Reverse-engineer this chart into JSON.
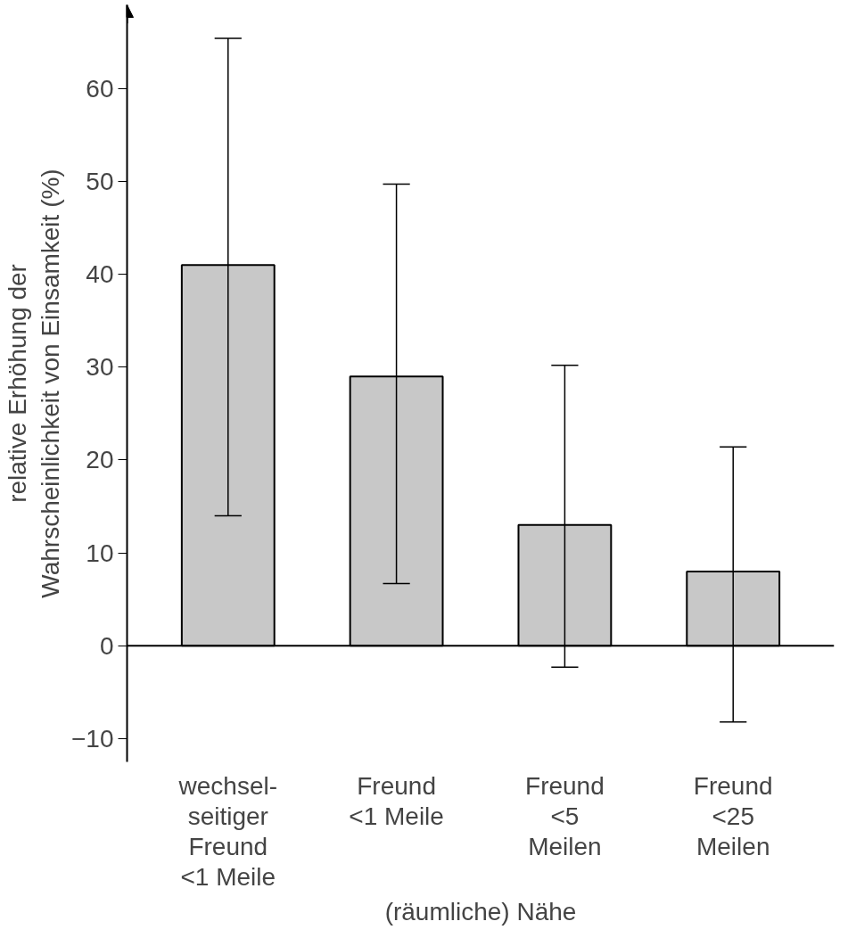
{
  "chart_data": {
    "type": "bar",
    "ylabel": "relative Erhöhung der\nWahrscheinlichkeit von Einsamkeit (%)",
    "xlabel": "(räumliche) Nähe",
    "categories": [
      "wechsel-\nseitiger\nFreund\n<1 Meile",
      "Freund\n<1 Meile",
      "Freund\n<5\nMeilen",
      "Freund\n<25\nMeilen"
    ],
    "values": [
      41,
      29,
      13,
      8
    ],
    "errors": [
      [
        14,
        65.4
      ],
      [
        6.7,
        49.7
      ],
      [
        -2.3,
        30.2
      ],
      [
        -8.2,
        21.4
      ]
    ],
    "color": "#c8c8c8",
    "ylim": [
      -12.5,
      69
    ],
    "yticks": [
      -10,
      0,
      10,
      20,
      30,
      40,
      50,
      60
    ],
    "grid": false,
    "ref_lines": [
      {
        "axis": "y",
        "value": 0,
        "color": "#000000",
        "line_style": "solid"
      }
    ]
  }
}
